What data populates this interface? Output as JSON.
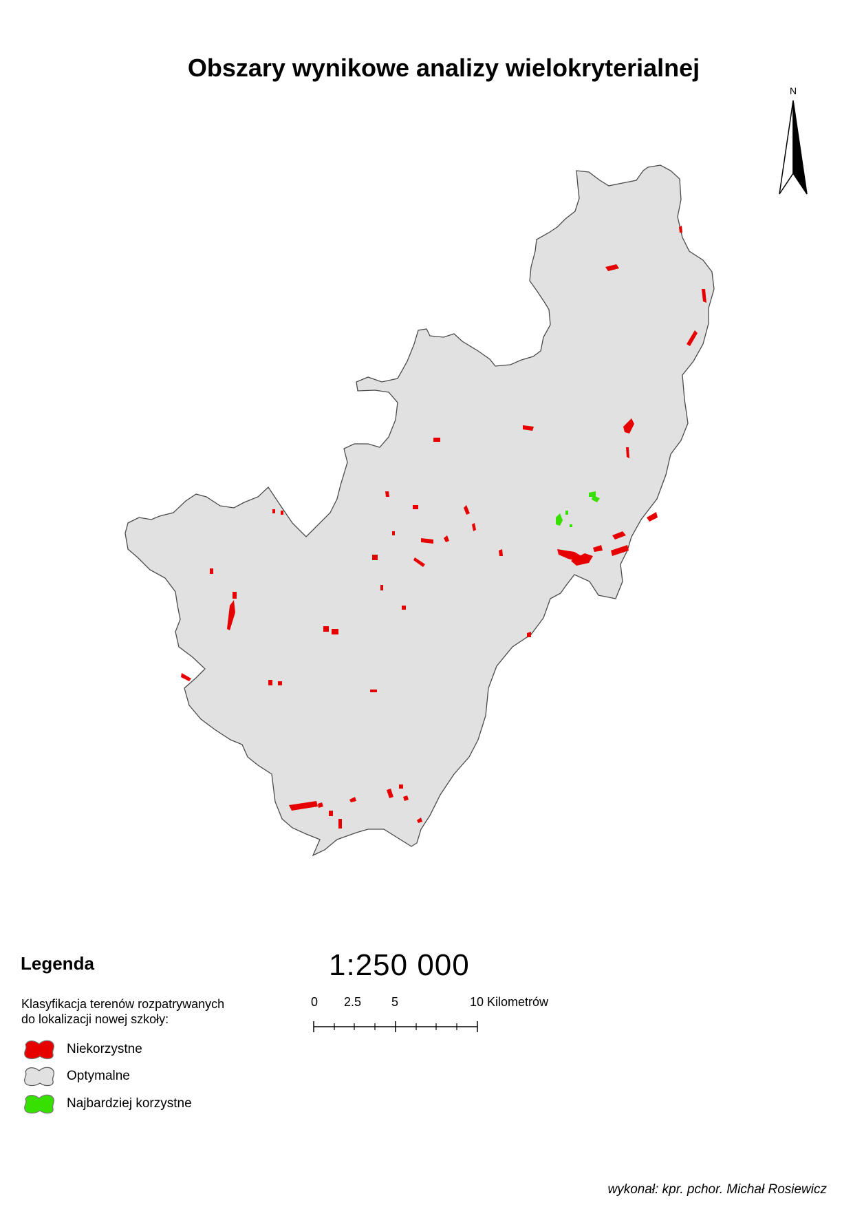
{
  "title": "Obszary wynikowe analizy wielokryterialnej",
  "north_label": "N",
  "legend": {
    "title": "Legenda",
    "description_line1": "Klasyfikacja terenów rozpatrywanych",
    "description_line2": "do lokalizacji nowej szkoły:",
    "items": [
      {
        "label": "Niekorzystne",
        "color": "#ff0000"
      },
      {
        "label": "Optymalne",
        "color": "#e1e1e1"
      },
      {
        "label": "Najbardziej korzystne",
        "color": "#38e000"
      }
    ]
  },
  "scale": {
    "ratio": "1:250 000",
    "labels": [
      "0",
      "2.5",
      "5",
      "10 Kilometrów"
    ]
  },
  "author": "wykonał: kpr. pchor. Michał Rosiewicz",
  "colors": {
    "region_fill": "#e1e1e1",
    "region_stroke": "#4a4a4a",
    "unfavorable": "#e60000",
    "favorable": "#38e000"
  }
}
